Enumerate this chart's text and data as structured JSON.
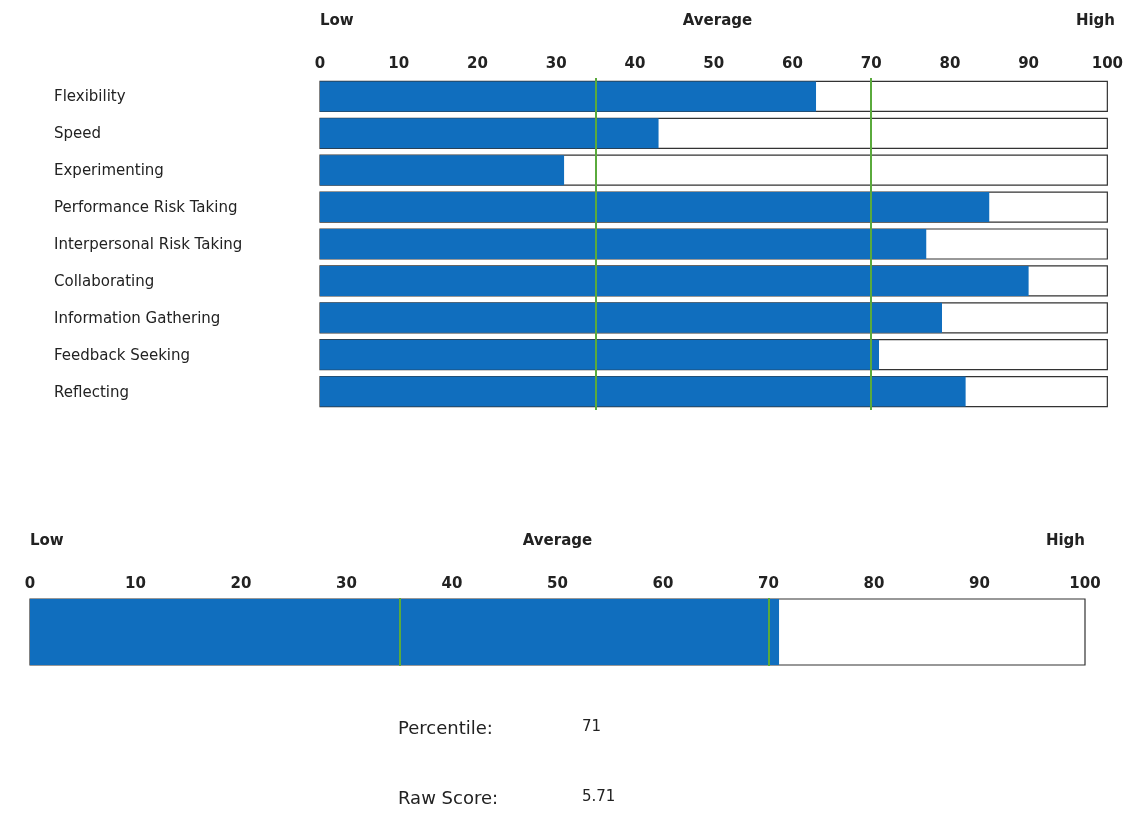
{
  "chart_data": [
    {
      "type": "bar",
      "orientation": "horizontal",
      "categories": [
        "Flexibility",
        "Speed",
        "Experimenting",
        "Performance Risk Taking",
        "Interpersonal Risk Taking",
        "Collaborating",
        "Information Gathering",
        "Feedback Seeking",
        "Reflecting"
      ],
      "values": [
        63,
        43,
        31,
        85,
        77,
        90,
        79,
        71,
        82
      ],
      "color": "#106ebe",
      "xlim": [
        0,
        100
      ],
      "xticks": [
        0,
        10,
        20,
        30,
        40,
        50,
        60,
        70,
        80,
        90,
        100
      ],
      "ref_lines": [
        {
          "axis": "x",
          "value": 35,
          "color": "#5aaa3c"
        },
        {
          "axis": "x",
          "value": 70,
          "color": "#5aaa3c"
        }
      ],
      "annotations": [
        "Low",
        "Average",
        "High"
      ]
    },
    {
      "type": "bar",
      "orientation": "horizontal",
      "categories": [
        null
      ],
      "values": [
        71
      ],
      "color": "#106ebe",
      "xlim": [
        0,
        100
      ],
      "xticks": [
        0,
        10,
        20,
        30,
        40,
        50,
        60,
        70,
        80,
        90,
        100
      ],
      "ref_lines": [
        {
          "axis": "x",
          "value": 35,
          "color": "#5aaa3c"
        },
        {
          "axis": "x",
          "value": 70,
          "color": "#5aaa3c"
        }
      ],
      "annotations": [
        "Low",
        "Average",
        "High",
        "Percentile:",
        "71",
        "Raw Score:",
        "5.71"
      ]
    }
  ]
}
